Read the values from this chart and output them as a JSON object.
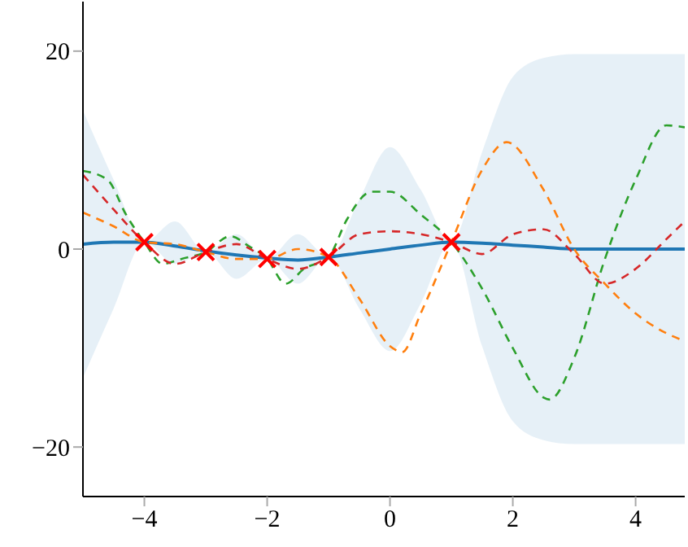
{
  "chart_data": {
    "type": "line",
    "xlim": [
      -5,
      4.8
    ],
    "ylim": [
      -25,
      25
    ],
    "xticks": [
      -4,
      -2,
      0,
      2,
      4
    ],
    "yticks": [
      -20,
      0,
      20
    ],
    "grid": false,
    "legend": false,
    "series": [
      {
        "color": "#1f77b4",
        "line_style": "solid",
        "marker": "none",
        "x": [
          -5,
          -4.5,
          -4,
          -3.5,
          -3,
          -2.5,
          -2,
          -1.5,
          -1,
          -0.5,
          0,
          0.5,
          1,
          1.5,
          2,
          2.5,
          3,
          3.5,
          4,
          4.5,
          4.8
        ],
        "values": [
          0.5,
          0.7,
          0.7,
          0.3,
          -0.2,
          -0.6,
          -0.9,
          -1.1,
          -0.8,
          -0.4,
          0,
          0.4,
          0.7,
          0.6,
          0.4,
          0.2,
          0,
          0,
          0,
          0,
          0
        ],
        "lower": [
          -13,
          -6,
          0.7,
          -1.5,
          -0.3,
          -3,
          -1,
          -3.5,
          -0.8,
          -6,
          -10.3,
          -5.5,
          0.7,
          -9.8,
          -17.4,
          -19.3,
          -19.7,
          -19.7,
          -19.7,
          -19.7,
          -19.7
        ],
        "upper": [
          14,
          7,
          0.7,
          2.8,
          -0.3,
          1.5,
          -1,
          1.5,
          -0.8,
          5,
          10.3,
          6,
          0.7,
          9.8,
          17.4,
          19.3,
          19.7,
          19.7,
          19.7,
          19.7,
          19.7
        ]
      },
      {
        "color": "#ff7f0e",
        "line_style": "dashed",
        "marker": "none",
        "x": [
          -5,
          -4.5,
          -4,
          -3.5,
          -3,
          -2.5,
          -2,
          -1.5,
          -1,
          -0.5,
          0,
          0.2,
          0.5,
          1,
          1.5,
          1.9,
          2.5,
          3,
          3.5,
          4,
          4.5,
          4.8
        ],
        "values": [
          3.7,
          2.3,
          0.7,
          0.5,
          -0.3,
          -1,
          -1,
          0,
          -0.8,
          -5,
          -9.8,
          -10.4,
          -6.5,
          0.7,
          8,
          10.8,
          6,
          0,
          -3.5,
          -6.5,
          -8.5,
          -9.3
        ]
      },
      {
        "color": "#2ca02c",
        "line_style": "dashed",
        "marker": "none",
        "x": [
          -5,
          -4.6,
          -4.3,
          -4,
          -3.7,
          -3.4,
          -3,
          -2.6,
          -2.3,
          -2,
          -1.7,
          -1.4,
          -1,
          -0.7,
          -0.3,
          0,
          0.5,
          1,
          1.5,
          2,
          2.5,
          2.6,
          3,
          3.5,
          4,
          4.5,
          4.8
        ],
        "values": [
          7.9,
          7,
          3.5,
          0.7,
          -1.5,
          -1,
          -0.3,
          1.3,
          0.3,
          -1,
          -3.5,
          -2,
          -0.8,
          3,
          5.8,
          5.8,
          3.5,
          0.7,
          -4,
          -10,
          -15,
          -15.2,
          -11,
          -1,
          7,
          12.5,
          12.3
        ]
      },
      {
        "color": "#d62728",
        "line_style": "dashed",
        "marker": "none",
        "x": [
          -5,
          -4.5,
          -4,
          -3.5,
          -3,
          -2.5,
          -2,
          -1.5,
          -1,
          -0.5,
          0,
          0.5,
          1,
          1.5,
          2,
          2.5,
          3,
          3.5,
          4,
          4.5,
          4.8
        ],
        "values": [
          7.5,
          4,
          0.7,
          -1.5,
          -0.3,
          0.5,
          -1,
          -2,
          -0.8,
          1.5,
          1.8,
          1.5,
          0.7,
          -0.5,
          1.5,
          2,
          -0.5,
          -3.5,
          -2,
          1,
          2.8
        ]
      },
      {
        "type": "scatter",
        "color": "#ff0000",
        "marker": "cross",
        "x": [
          -4,
          -3,
          -2,
          -1,
          1
        ],
        "values": [
          0.7,
          -0.3,
          -1,
          -0.8,
          0.7
        ]
      }
    ]
  }
}
